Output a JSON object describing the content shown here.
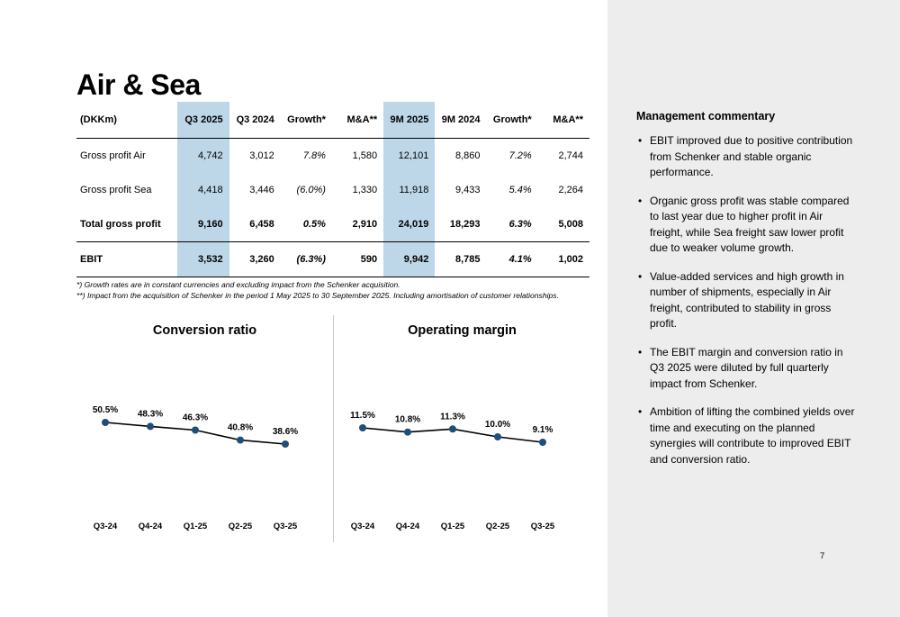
{
  "page": {
    "title": "Air & Sea",
    "page_number": "7"
  },
  "table": {
    "highlight_color": "#bdd7e8",
    "columns": [
      "(DKKm)",
      "Q3 2025",
      "Q3 2024",
      "Growth*",
      "M&A**",
      "9M 2025",
      "9M 2024",
      "Growth*",
      "M&A**"
    ],
    "rows": [
      {
        "label": "Gross profit Air",
        "values": [
          "4,742",
          "3,012",
          "7.8%",
          "1,580",
          "12,101",
          "8,860",
          "7.2%",
          "2,744"
        ]
      },
      {
        "label": "Gross profit Sea",
        "values": [
          "4,418",
          "3,446",
          "(6.0%)",
          "1,330",
          "11,918",
          "9,433",
          "5.4%",
          "2,264"
        ]
      },
      {
        "label": "Total gross profit",
        "values": [
          "9,160",
          "6,458",
          "0.5%",
          "2,910",
          "24,019",
          "18,293",
          "6.3%",
          "5,008"
        ]
      },
      {
        "label": "EBIT",
        "values": [
          "3,532",
          "3,260",
          "(6.3%)",
          "590",
          "9,942",
          "8,785",
          "4.1%",
          "1,002"
        ]
      }
    ]
  },
  "footnotes": [
    "*) Growth rates are in constant currencies and excluding impact from the Schenker acquisition.",
    "**) Impact from the acquisition of Schenker in the period 1 May 2025 to 30 September 2025. Including amortisation of customer relationships."
  ],
  "chart_data": [
    {
      "type": "line",
      "title": "Conversion ratio",
      "x": [
        "Q3-24",
        "Q4-24",
        "Q1-25",
        "Q2-25",
        "Q3-25"
      ],
      "values": [
        50.5,
        48.3,
        46.3,
        40.8,
        38.6
      ],
      "labels": [
        "50.5%",
        "48.3%",
        "46.3%",
        "40.8%",
        "38.6%"
      ],
      "point_color": "#1f4e79",
      "line_color": "#000000",
      "legend": "none",
      "grid": false
    },
    {
      "type": "line",
      "title": "Operating margin",
      "x": [
        "Q3-24",
        "Q4-24",
        "Q1-25",
        "Q2-25",
        "Q3-25"
      ],
      "values": [
        11.5,
        10.8,
        11.3,
        10.0,
        9.1
      ],
      "labels": [
        "11.5%",
        "10.8%",
        "11.3%",
        "10.0%",
        "9.1%"
      ],
      "point_color": "#1f4e79",
      "line_color": "#000000",
      "legend": "none",
      "grid": false
    }
  ],
  "sidebar": {
    "heading": "Management commentary",
    "bullets": [
      "EBIT improved due to positive contribution from Schenker and stable organic performance.",
      "Organic gross profit was stable compared to last year due to higher profit in Air freight, while Sea freight saw lower profit due to weaker volume growth.",
      "Value-added services and high growth in number of shipments, especially in Air freight, contributed to stability in gross profit.",
      "The EBIT margin and conversion ratio in Q3 2025 were diluted by full quarterly impact from Schenker.",
      "Ambition of lifting the combined yields over time and executing on the planned synergies will contribute to improved EBIT and conversion ratio."
    ]
  }
}
